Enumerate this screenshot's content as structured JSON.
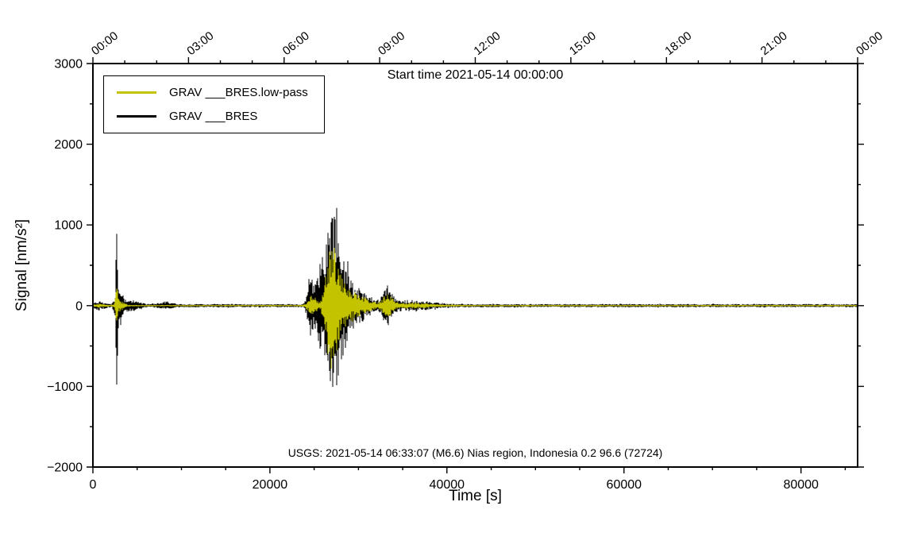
{
  "figure": {
    "title": "Start time 2021-05-14 00:00:00",
    "xlabel": "Time [s]",
    "ylabel": "Signal [nm/s²]",
    "annotation": "USGS: 2021-05-14 06:33:07 (M6.6) Nias region, Indonesia 0.2 96.6 (72724)"
  },
  "legend": {
    "items": [
      {
        "label": "GRAV ___BRES.low-pass",
        "color": "#c3c300"
      },
      {
        "label": "GRAV ___BRES",
        "color": "#000000"
      }
    ],
    "position": "upper left"
  },
  "chart_data": {
    "type": "line",
    "title": "Start time 2021-05-14 00:00:00",
    "xlabel": "Time [s]",
    "ylabel": "Signal [nm/s2]",
    "xlim": [
      0,
      86400
    ],
    "ylim": [
      -2000,
      3000
    ],
    "x_ticks": [
      0,
      20000,
      40000,
      60000,
      80000
    ],
    "x_minor_step": 5000,
    "y_ticks": [
      -2000,
      -1000,
      0,
      1000,
      2000,
      3000
    ],
    "y_minor_step": 500,
    "top_ticks": [
      {
        "t": 0,
        "label": "00:00"
      },
      {
        "t": 10800,
        "label": "03:00"
      },
      {
        "t": 21600,
        "label": "06:00"
      },
      {
        "t": 32400,
        "label": "09:00"
      },
      {
        "t": 43200,
        "label": "12:00"
      },
      {
        "t": 54000,
        "label": "15:00"
      },
      {
        "t": 64800,
        "label": "18:00"
      },
      {
        "t": 75600,
        "label": "21:00"
      },
      {
        "t": 86400,
        "label": "00:00"
      }
    ],
    "top_minor_step": 3600,
    "grid": false,
    "legend_position": "upper left",
    "series": [
      {
        "name": "GRAV ___BRES",
        "color": "#000000",
        "noise": 20,
        "seed": 7,
        "peak_amplitude": 1600,
        "min_amplitude": -1400,
        "events": [
          {
            "center": 700,
            "sigma": 500,
            "amp": 40
          },
          {
            "center": 2700,
            "sigma": 80,
            "amp": 950
          },
          {
            "center": 2950,
            "sigma": 320,
            "amp": 260
          },
          {
            "center": 4200,
            "sigma": 800,
            "amp": 55
          },
          {
            "center": 8200,
            "sigma": 700,
            "amp": 30
          },
          {
            "center": 24500,
            "sigma": 260,
            "amp": 330
          },
          {
            "center": 25600,
            "sigma": 500,
            "amp": 450
          },
          {
            "center": 26900,
            "sigma": 550,
            "amp": 1000
          },
          {
            "center": 27900,
            "sigma": 800,
            "amp": 520
          },
          {
            "center": 29800,
            "sigma": 1200,
            "amp": 200
          },
          {
            "center": 33300,
            "sigma": 450,
            "amp": 220
          },
          {
            "center": 35500,
            "sigma": 2500,
            "amp": 50
          }
        ]
      },
      {
        "name": "GRAV ___BRES.low-pass",
        "color": "#c3c300",
        "noise": 9,
        "seed": 11,
        "peak_amplitude": 750,
        "min_amplitude": -800,
        "events": [
          {
            "center": 700,
            "sigma": 500,
            "amp": 16
          },
          {
            "center": 2700,
            "sigma": 120,
            "amp": 220
          },
          {
            "center": 3100,
            "sigma": 400,
            "amp": 60
          },
          {
            "center": 24800,
            "sigma": 400,
            "amp": 120
          },
          {
            "center": 26900,
            "sigma": 500,
            "amp": 650
          },
          {
            "center": 27800,
            "sigma": 800,
            "amp": 300
          },
          {
            "center": 29800,
            "sigma": 1200,
            "amp": 120
          },
          {
            "center": 33300,
            "sigma": 450,
            "amp": 130
          },
          {
            "center": 35500,
            "sigma": 2500,
            "amp": 28
          }
        ]
      }
    ]
  }
}
